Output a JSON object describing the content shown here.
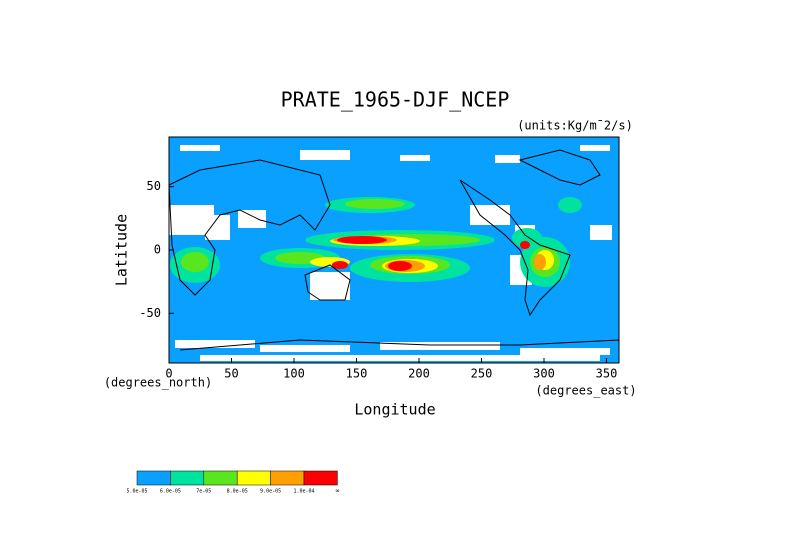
{
  "chart_data": {
    "type": "map",
    "title": "PRATE_1965-DJF_NCEP",
    "units_label": "(units:Kg/m¯2/s)",
    "x_label": "Longitude",
    "y_label": "Latitude",
    "x_unit_label": "(degrees_east)",
    "y_unit_label": "(degrees_north)",
    "xlim": [
      0,
      360
    ],
    "ylim": [
      -90,
      90
    ],
    "xticks": [
      0,
      50,
      100,
      150,
      200,
      250,
      300,
      350
    ],
    "yticks": [
      50,
      0,
      -50
    ],
    "colorbar": {
      "colors": [
        "#0aa0ff",
        "#00e3a0",
        "#5ae61e",
        "#ffff00",
        "#ffa000",
        "#ff0000"
      ],
      "labels": [
        {
          "value": 5e-05,
          "label": "5.0e-05"
        },
        {
          "value": 6e-05,
          "label": "6.0e-05"
        },
        {
          "value": 7e-05,
          "label": "7e-05"
        },
        {
          "value": 8e-05,
          "label": "8.0e-05"
        },
        {
          "value": 9e-05,
          "label": "9.0e-05"
        },
        {
          "value": 0.0001,
          "label": "1.0e-04"
        }
      ],
      "end_label": "∞"
    }
  }
}
